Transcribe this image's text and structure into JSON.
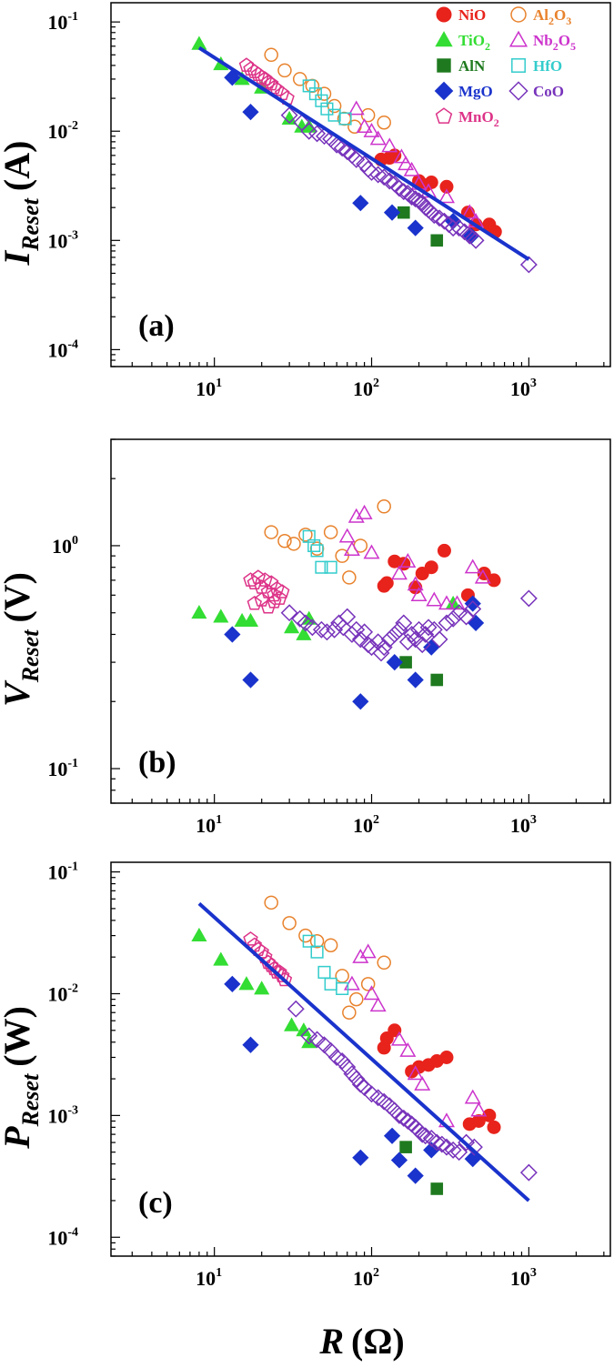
{
  "x_axis": {
    "symbol": "R",
    "unit": "(Ω)",
    "ticks": [
      {
        "base": "10",
        "exp": "1"
      },
      {
        "base": "10",
        "exp": "2"
      },
      {
        "base": "10",
        "exp": "3"
      }
    ]
  },
  "legend": [
    {
      "key": "NiO",
      "label": "NiO",
      "sub": "",
      "color": "#e8231c",
      "marker": "circle",
      "filled": true
    },
    {
      "key": "Al2O3",
      "label": "Al",
      "sub": "2",
      "label2": "O",
      "sub2": "3",
      "color": "#e8822c",
      "marker": "circle",
      "filled": false
    },
    {
      "key": "TiO2",
      "label": "TiO",
      "sub": "2",
      "color": "#33dd33",
      "marker": "triangle",
      "filled": true
    },
    {
      "key": "Nb2O5",
      "label": "Nb",
      "sub": "2",
      "label2": "O",
      "sub2": "5",
      "color": "#cc33cc",
      "marker": "triangle",
      "filled": false
    },
    {
      "key": "AlN",
      "label": "AlN",
      "sub": "",
      "color": "#1f7a1f",
      "marker": "square",
      "filled": true
    },
    {
      "key": "HfO",
      "label": "HfO",
      "sub": "",
      "color": "#33cccc",
      "marker": "square",
      "filled": false
    },
    {
      "key": "MgO",
      "label": "MgO",
      "sub": "",
      "color": "#1a33cc",
      "marker": "diamond",
      "filled": true
    },
    {
      "key": "CoO",
      "label": "CoO",
      "sub": "",
      "color": "#7733bb",
      "marker": "diamond",
      "filled": false
    },
    {
      "key": "MnO2",
      "label": "MnO",
      "sub": "2",
      "color": "#dd3388",
      "marker": "pentagon",
      "filled": false
    }
  ],
  "chart_data": [
    {
      "type": "scatter",
      "panel_label": "(a)",
      "ylabel_main": "I",
      "ylabel_sub": "Reset",
      "ylabel_unit": "(A)",
      "xscale": "log",
      "yscale": "log",
      "xlim": [
        2.2,
        3300
      ],
      "ylim": [
        7e-05,
        0.15
      ],
      "yticks": [
        {
          "base": "10",
          "exp": "-4"
        },
        {
          "base": "10",
          "exp": "-3"
        },
        {
          "base": "10",
          "exp": "-2"
        },
        {
          "base": "10",
          "exp": "-1"
        }
      ],
      "fit_line": {
        "x": [
          8,
          1000
        ],
        "y": [
          0.058,
          0.00067
        ],
        "color": "#1a33cc"
      },
      "series": [
        {
          "key": "NiO",
          "x": [
            115,
            130,
            140,
            200,
            220,
            240,
            300,
            410,
            460,
            560,
            610
          ],
          "y": [
            0.0055,
            0.0057,
            0.006,
            0.0035,
            0.0032,
            0.0034,
            0.0031,
            0.0018,
            0.0014,
            0.0014,
            0.0012
          ]
        },
        {
          "key": "Al2O3",
          "x": [
            23,
            28,
            35,
            42,
            50,
            58,
            67,
            78,
            95,
            120
          ],
          "y": [
            0.05,
            0.036,
            0.03,
            0.026,
            0.022,
            0.017,
            0.013,
            0.011,
            0.014,
            0.012
          ]
        },
        {
          "key": "TiO2",
          "x": [
            8,
            11,
            15,
            20,
            30,
            36,
            40
          ],
          "y": [
            0.063,
            0.041,
            0.03,
            0.025,
            0.013,
            0.011,
            0.011
          ]
        },
        {
          "key": "Nb2O5",
          "x": [
            80,
            90,
            100,
            110,
            130,
            155,
            165,
            180,
            200,
            230,
            300,
            420,
            460
          ],
          "y": [
            0.016,
            0.011,
            0.01,
            0.0085,
            0.0073,
            0.0058,
            0.005,
            0.0044,
            0.0033,
            0.0028,
            0.0025,
            0.0018,
            0.0015
          ]
        },
        {
          "key": "AlN",
          "x": [
            160,
            260
          ],
          "y": [
            0.0018,
            0.001
          ]
        },
        {
          "key": "HfO",
          "x": [
            40,
            44,
            48,
            52,
            58,
            68
          ],
          "y": [
            0.026,
            0.022,
            0.019,
            0.016,
            0.014,
            0.013
          ]
        },
        {
          "key": "MgO",
          "x": [
            13,
            17,
            85,
            135,
            190,
            330,
            430
          ],
          "y": [
            0.031,
            0.015,
            0.0022,
            0.0018,
            0.0013,
            0.0015,
            0.0011
          ]
        },
        {
          "key": "CoO",
          "x": [
            30,
            36,
            40,
            45,
            50,
            55,
            60,
            65,
            70,
            75,
            80,
            90,
            95,
            100,
            110,
            120,
            130,
            140,
            150,
            160,
            170,
            180,
            190,
            200,
            210,
            220,
            230,
            240,
            250,
            270,
            290,
            310,
            330,
            360,
            390,
            420,
            460,
            1000
          ],
          "y": [
            0.014,
            0.012,
            0.01,
            0.0095,
            0.009,
            0.0085,
            0.0075,
            0.007,
            0.0065,
            0.006,
            0.0055,
            0.005,
            0.0045,
            0.0042,
            0.004,
            0.0038,
            0.0035,
            0.0033,
            0.003,
            0.0028,
            0.0027,
            0.0025,
            0.0024,
            0.0023,
            0.0022,
            0.002,
            0.0019,
            0.0018,
            0.0017,
            0.0016,
            0.0015,
            0.0014,
            0.0013,
            0.0013,
            0.0012,
            0.0011,
            0.001,
            0.0006
          ]
        },
        {
          "key": "MnO2",
          "x": [
            16,
            17,
            18,
            19,
            20,
            21,
            22,
            23,
            24,
            25,
            27,
            29
          ],
          "y": [
            0.04,
            0.037,
            0.035,
            0.033,
            0.031,
            0.03,
            0.028,
            0.027,
            0.025,
            0.024,
            0.022,
            0.02
          ]
        }
      ]
    },
    {
      "type": "scatter",
      "panel_label": "(b)",
      "ylabel_main": "V",
      "ylabel_sub": "Reset",
      "ylabel_unit": "(V)",
      "xscale": "log",
      "yscale": "log",
      "xlim": [
        2.2,
        3300
      ],
      "ylim": [
        0.07,
        3
      ],
      "yticks": [
        {
          "base": "10",
          "exp": "-1"
        },
        {
          "base": "10",
          "exp": "0"
        }
      ],
      "series": [
        {
          "key": "NiO",
          "x": [
            120,
            125,
            140,
            160,
            190,
            210,
            240,
            290,
            410,
            520,
            600
          ],
          "y": [
            0.66,
            0.68,
            0.85,
            0.83,
            0.65,
            0.75,
            0.8,
            0.95,
            0.6,
            0.75,
            0.7
          ]
        },
        {
          "key": "Al2O3",
          "x": [
            23,
            28,
            32,
            38,
            45,
            55,
            65,
            72,
            85,
            120
          ],
          "y": [
            1.15,
            1.05,
            1.02,
            1.12,
            0.97,
            1.15,
            0.9,
            0.72,
            1.0,
            1.5
          ]
        },
        {
          "key": "TiO2",
          "x": [
            8,
            11,
            15,
            17,
            31,
            37,
            40,
            330
          ],
          "y": [
            0.5,
            0.48,
            0.46,
            0.46,
            0.43,
            0.4,
            0.47,
            0.55
          ]
        },
        {
          "key": "Nb2O5",
          "x": [
            70,
            75,
            80,
            90,
            100,
            150,
            170,
            190,
            200,
            250,
            300,
            350,
            440,
            510
          ],
          "y": [
            1.1,
            0.96,
            1.35,
            1.4,
            0.93,
            0.75,
            0.85,
            0.67,
            0.6,
            0.57,
            0.55,
            0.55,
            0.8,
            0.72
          ]
        },
        {
          "key": "AlN",
          "x": [
            165,
            260
          ],
          "y": [
            0.3,
            0.25
          ]
        },
        {
          "key": "HfO",
          "x": [
            40,
            43,
            45,
            48,
            55
          ],
          "y": [
            1.1,
            1.0,
            0.95,
            0.8,
            0.8
          ]
        },
        {
          "key": "MgO",
          "x": [
            13,
            17,
            85,
            140,
            190,
            240,
            440,
            460
          ],
          "y": [
            0.4,
            0.25,
            0.2,
            0.3,
            0.25,
            0.35,
            0.55,
            0.45
          ]
        },
        {
          "key": "CoO",
          "x": [
            30,
            35,
            38,
            42,
            48,
            52,
            58,
            62,
            66,
            70,
            75,
            80,
            85,
            90,
            95,
            100,
            110,
            115,
            120,
            130,
            140,
            150,
            160,
            170,
            180,
            190,
            200,
            210,
            220,
            230,
            250,
            270,
            300,
            330,
            360,
            400,
            440,
            1000
          ],
          "y": [
            0.5,
            0.47,
            0.45,
            0.43,
            0.42,
            0.41,
            0.42,
            0.45,
            0.43,
            0.48,
            0.4,
            0.42,
            0.38,
            0.41,
            0.36,
            0.35,
            0.37,
            0.33,
            0.35,
            0.38,
            0.4,
            0.42,
            0.45,
            0.37,
            0.4,
            0.38,
            0.42,
            0.36,
            0.4,
            0.43,
            0.42,
            0.38,
            0.45,
            0.47,
            0.5,
            0.48,
            0.52,
            0.58
          ]
        },
        {
          "key": "MnO2",
          "x": [
            17,
            18,
            19,
            20,
            21,
            22,
            23,
            24,
            25,
            26,
            27,
            18,
            20,
            22,
            24
          ],
          "y": [
            0.7,
            0.68,
            0.72,
            0.65,
            0.7,
            0.62,
            0.68,
            0.6,
            0.64,
            0.58,
            0.62,
            0.55,
            0.57,
            0.53,
            0.56
          ]
        }
      ]
    },
    {
      "type": "scatter",
      "panel_label": "(c)",
      "ylabel_main": "P",
      "ylabel_sub": "Reset",
      "ylabel_unit": "(W)",
      "xscale": "log",
      "yscale": "log",
      "xlim": [
        2.2,
        3300
      ],
      "ylim": [
        7e-05,
        0.12
      ],
      "yticks": [
        {
          "base": "10",
          "exp": "-4"
        },
        {
          "base": "10",
          "exp": "-3"
        },
        {
          "base": "10",
          "exp": "-2"
        },
        {
          "base": "10",
          "exp": "-1"
        }
      ],
      "fit_line": {
        "x": [
          8,
          1000
        ],
        "y": [
          0.055,
          0.0002
        ],
        "color": "#1a33cc"
      },
      "series": [
        {
          "key": "NiO",
          "x": [
            120,
            125,
            140,
            180,
            200,
            230,
            260,
            300,
            420,
            480,
            560,
            600
          ],
          "y": [
            0.0036,
            0.0043,
            0.005,
            0.0023,
            0.0025,
            0.0026,
            0.0028,
            0.003,
            0.00085,
            0.0009,
            0.001,
            0.0008
          ]
        },
        {
          "key": "Al2O3",
          "x": [
            23,
            30,
            38,
            45,
            55,
            65,
            72,
            80,
            95,
            120
          ],
          "y": [
            0.056,
            0.038,
            0.03,
            0.027,
            0.025,
            0.014,
            0.007,
            0.009,
            0.012,
            0.018
          ]
        },
        {
          "key": "TiO2",
          "x": [
            8,
            11,
            16,
            20,
            31,
            37,
            40
          ],
          "y": [
            0.03,
            0.019,
            0.012,
            0.011,
            0.0055,
            0.005,
            0.004
          ]
        },
        {
          "key": "Nb2O5",
          "x": [
            75,
            85,
            95,
            100,
            110,
            150,
            170,
            190,
            210,
            300,
            440,
            480
          ],
          "y": [
            0.012,
            0.02,
            0.022,
            0.01,
            0.008,
            0.0042,
            0.0034,
            0.0022,
            0.0018,
            0.0009,
            0.0014,
            0.0011
          ]
        },
        {
          "key": "AlN",
          "x": [
            165,
            260
          ],
          "y": [
            0.00055,
            0.00025
          ]
        },
        {
          "key": "HfO",
          "x": [
            40,
            45,
            50,
            55,
            65
          ],
          "y": [
            0.027,
            0.022,
            0.015,
            0.012,
            0.011
          ]
        },
        {
          "key": "MgO",
          "x": [
            13,
            17,
            85,
            135,
            150,
            190,
            240,
            440
          ],
          "y": [
            0.012,
            0.0038,
            0.00045,
            0.00068,
            0.00043,
            0.00032,
            0.00052,
            0.00044
          ]
        },
        {
          "key": "CoO",
          "x": [
            33,
            40,
            45,
            50,
            55,
            60,
            65,
            70,
            75,
            80,
            85,
            90,
            100,
            110,
            120,
            130,
            140,
            150,
            160,
            170,
            180,
            190,
            200,
            210,
            220,
            240,
            260,
            280,
            300,
            330,
            360,
            400,
            450,
            1000
          ],
          "y": [
            0.0075,
            0.0045,
            0.0042,
            0.0038,
            0.0034,
            0.003,
            0.0028,
            0.0025,
            0.0022,
            0.002,
            0.0018,
            0.0017,
            0.0015,
            0.0014,
            0.0013,
            0.0012,
            0.0011,
            0.001,
            0.00095,
            0.0009,
            0.00085,
            0.0008,
            0.00075,
            0.0007,
            0.00068,
            0.00065,
            0.0006,
            0.00058,
            0.00055,
            0.00052,
            0.0005,
            0.0006,
            0.00055,
            0.00034
          ]
        },
        {
          "key": "MnO2",
          "x": [
            17,
            18,
            19,
            20,
            21,
            22,
            23,
            24,
            25,
            26,
            27,
            28
          ],
          "y": [
            0.028,
            0.025,
            0.023,
            0.022,
            0.02,
            0.018,
            0.017,
            0.016,
            0.015,
            0.015,
            0.014,
            0.013
          ]
        }
      ]
    }
  ]
}
